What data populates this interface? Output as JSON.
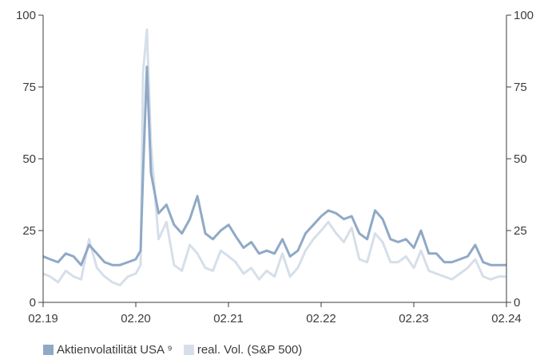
{
  "chart_data": {
    "type": "line",
    "title": "",
    "xlabel": "",
    "ylabel": "",
    "x_ticks": [
      "02.19",
      "02.20",
      "02.21",
      "02.22",
      "02.23",
      "02.24"
    ],
    "y_ticks": [
      "0",
      "25",
      "50",
      "75",
      "100"
    ],
    "ylim": [
      0,
      100
    ],
    "xlim": [
      "2019-02",
      "2024-02"
    ],
    "grid": false,
    "dual_y_axis": true,
    "legend_position": "bottom-left",
    "series": [
      {
        "name": "Aktienvolatilität USA ⁹",
        "color": "#8fa9c6",
        "x": [
          "2019-02",
          "2019-03",
          "2019-04",
          "2019-05",
          "2019-06",
          "2019-07",
          "2019-08",
          "2019-09",
          "2019-10",
          "2019-11",
          "2019-12",
          "2020-01",
          "2020-02",
          "2020-02-20",
          "2020-03",
          "2020-03-16",
          "2020-04",
          "2020-05",
          "2020-06",
          "2020-07",
          "2020-08",
          "2020-09",
          "2020-10",
          "2020-11",
          "2020-12",
          "2021-01",
          "2021-02",
          "2021-03",
          "2021-04",
          "2021-05",
          "2021-06",
          "2021-07",
          "2021-08",
          "2021-09",
          "2021-10",
          "2021-11",
          "2021-12",
          "2022-01",
          "2022-02",
          "2022-03",
          "2022-04",
          "2022-05",
          "2022-06",
          "2022-07",
          "2022-08",
          "2022-09",
          "2022-10",
          "2022-11",
          "2022-12",
          "2023-01",
          "2023-02",
          "2023-03",
          "2023-04",
          "2023-05",
          "2023-06",
          "2023-07",
          "2023-08",
          "2023-09",
          "2023-10",
          "2023-11",
          "2023-12",
          "2024-01",
          "2024-02"
        ],
        "values": [
          16,
          15,
          14,
          17,
          16,
          13,
          20,
          17,
          14,
          13,
          13,
          14,
          15,
          18,
          45,
          82,
          45,
          31,
          34,
          27,
          24,
          29,
          37,
          24,
          22,
          25,
          27,
          23,
          19,
          21,
          17,
          18,
          17,
          22,
          16,
          18,
          24,
          27,
          30,
          32,
          31,
          29,
          30,
          24,
          22,
          32,
          29,
          22,
          21,
          22,
          19,
          25,
          17,
          17,
          14,
          14,
          15,
          16,
          20,
          14,
          13,
          13,
          13
        ]
      },
      {
        "name": "real. Vol. (S&P 500)",
        "color": "#d6dfe9",
        "x": [
          "2019-02",
          "2019-03",
          "2019-04",
          "2019-05",
          "2019-06",
          "2019-07",
          "2019-08",
          "2019-09",
          "2019-10",
          "2019-11",
          "2019-12",
          "2020-01",
          "2020-02",
          "2020-02-20",
          "2020-03",
          "2020-03-16",
          "2020-04",
          "2020-05",
          "2020-06",
          "2020-07",
          "2020-08",
          "2020-09",
          "2020-10",
          "2020-11",
          "2020-12",
          "2021-01",
          "2021-02",
          "2021-03",
          "2021-04",
          "2021-05",
          "2021-06",
          "2021-07",
          "2021-08",
          "2021-09",
          "2021-10",
          "2021-11",
          "2021-12",
          "2022-01",
          "2022-02",
          "2022-03",
          "2022-04",
          "2022-05",
          "2022-06",
          "2022-07",
          "2022-08",
          "2022-09",
          "2022-10",
          "2022-11",
          "2022-12",
          "2023-01",
          "2023-02",
          "2023-03",
          "2023-04",
          "2023-05",
          "2023-06",
          "2023-07",
          "2023-08",
          "2023-09",
          "2023-10",
          "2023-11",
          "2023-12",
          "2024-01",
          "2024-02"
        ],
        "values": [
          10,
          9,
          7,
          11,
          9,
          8,
          22,
          12,
          9,
          7,
          6,
          9,
          10,
          13,
          80,
          95,
          55,
          22,
          28,
          13,
          11,
          20,
          17,
          12,
          11,
          18,
          16,
          14,
          10,
          12,
          8,
          11,
          9,
          17,
          9,
          12,
          18,
          22,
          25,
          28,
          24,
          21,
          26,
          15,
          14,
          24,
          21,
          14,
          14,
          16,
          12,
          18,
          11,
          10,
          9,
          8,
          10,
          12,
          15,
          9,
          8,
          9,
          9
        ]
      }
    ]
  },
  "legend": {
    "items": [
      {
        "label": "Aktienvolatilität USA ⁹",
        "color": "#8fa9c6"
      },
      {
        "label": "real. Vol. (S&P 500)",
        "color": "#d6dfe9"
      }
    ]
  }
}
